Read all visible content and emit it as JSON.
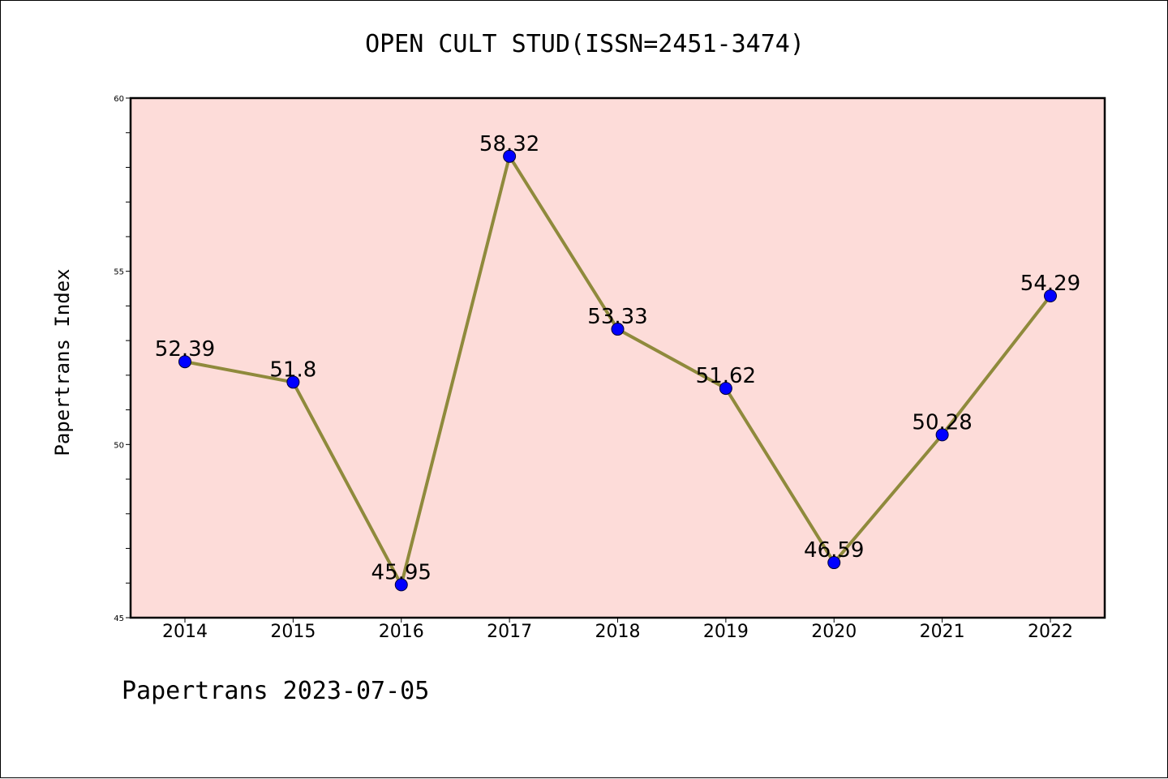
{
  "title": "OPEN CULT STUD(ISSN=2451-3474)",
  "footer": "Papertrans 2023-07-05",
  "colors": {
    "plot_background": "#fddcd9",
    "line": "#8f8a3c",
    "marker": "#0000ff",
    "axes": "#000000"
  },
  "chart_data": {
    "type": "line",
    "title": "OPEN CULT STUD(ISSN=2451-3474)",
    "xlabel": "",
    "ylabel": "Papertrans Index",
    "categories": [
      "2014",
      "2015",
      "2016",
      "2017",
      "2018",
      "2019",
      "2020",
      "2021",
      "2022"
    ],
    "series": [
      {
        "values": [
          52.39,
          51.8,
          45.95,
          58.32,
          53.33,
          51.62,
          46.59,
          50.28,
          54.29
        ],
        "labels": [
          "52.39",
          "51.8",
          "45.95",
          "58.32",
          "53.33",
          "51.62",
          "46.59",
          "50.28",
          "54.29"
        ]
      }
    ],
    "ylim": [
      45,
      60
    ],
    "yticks": [
      45,
      50,
      55,
      60
    ],
    "ytick_labels": [
      "45",
      "50",
      "55",
      "60"
    ],
    "y_minor_step": 1,
    "grid": false,
    "legend": "none"
  }
}
